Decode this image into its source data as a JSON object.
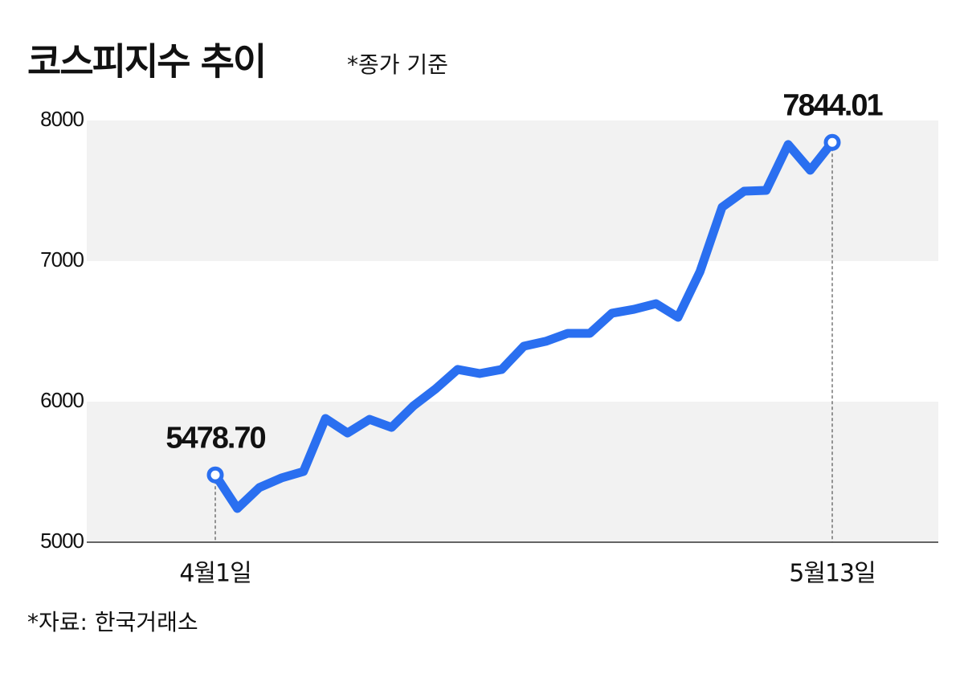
{
  "chart_data": {
    "type": "line",
    "title": "코스피지수 추이",
    "subtitle": "*종가 기준",
    "source": "*자료: 한국거래소",
    "categories": [
      "4월1일",
      null,
      null,
      null,
      null,
      null,
      null,
      null,
      null,
      null,
      null,
      null,
      null,
      null,
      null,
      null,
      null,
      null,
      null,
      null,
      null,
      null,
      null,
      null,
      null,
      null,
      null,
      null,
      "5월13일"
    ],
    "series": [
      {
        "name": "코스피지수",
        "color": "#2a6ff0",
        "values": [
          5478.7,
          5240,
          5389,
          5457,
          5503,
          5880,
          5777,
          5874,
          5817,
          5971,
          6091,
          6229,
          6200,
          6229,
          6394,
          6429,
          6486,
          6486,
          6629,
          6657,
          6697,
          6600,
          6926,
          7383,
          7497,
          7503,
          7829,
          7646,
          7844.01
        ],
        "value_labels": [
          "5478.70",
          null,
          null,
          null,
          null,
          null,
          null,
          null,
          null,
          null,
          null,
          null,
          null,
          null,
          null,
          null,
          null,
          null,
          null,
          null,
          null,
          null,
          null,
          null,
          null,
          null,
          null,
          null,
          "7844.01"
        ]
      }
    ],
    "ylim": [
      5000,
      8000
    ],
    "yticks": [
      5000,
      6000,
      7000,
      8000
    ],
    "grid": "bands",
    "band_color": "#f2f2f2"
  }
}
